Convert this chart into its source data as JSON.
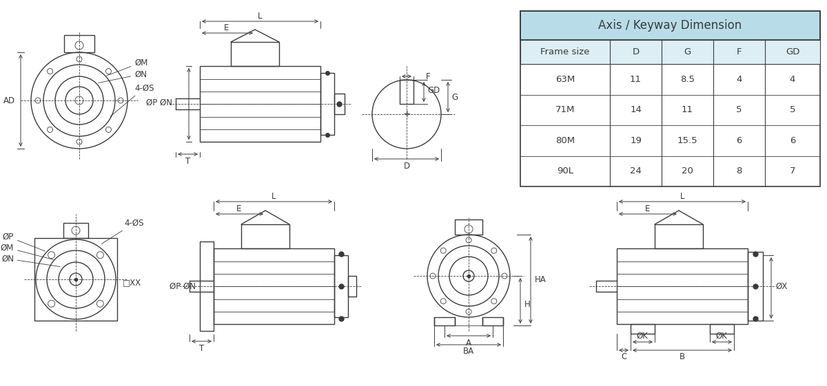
{
  "bg_color": "#ffffff",
  "line_color": "#3a3a3a",
  "table_header_bg": "#b8dce8",
  "table_title": "Axis / Keyway Dimension",
  "table_col_headers": [
    "Frame size",
    "D",
    "G",
    "F",
    "GD"
  ],
  "table_rows": [
    [
      "63M",
      "11",
      "8.5",
      "4",
      "4"
    ],
    [
      "71M",
      "14",
      "11",
      "5",
      "5"
    ],
    [
      "80M",
      "19",
      "15.5",
      "6",
      "6"
    ],
    [
      "90L",
      "24",
      "20",
      "8",
      "7"
    ]
  ],
  "font_size_labels": 8.5,
  "font_size_table_title": 12,
  "font_size_table_header": 9.5,
  "font_size_table_data": 9.5
}
